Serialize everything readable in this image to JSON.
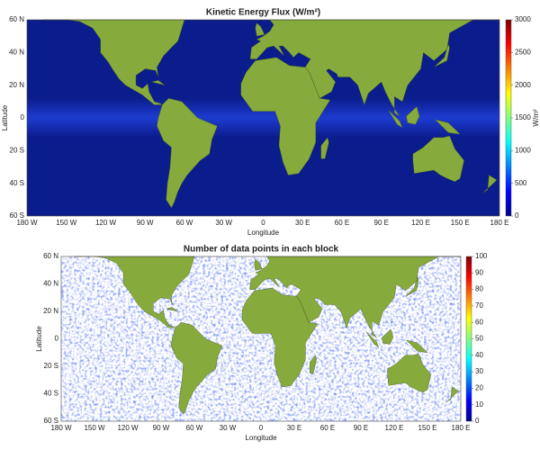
{
  "panels": [
    {
      "title": "Kinetic Energy Flux (W/m²)",
      "x_label": "Longitude",
      "y_label": "Latitude",
      "x_ticks": [
        "180 W",
        "150 W",
        "120 W",
        "90 W",
        "60 W",
        "30 W",
        "0",
        "30 E",
        "60 E",
        "90 E",
        "120 E",
        "150 E",
        "180 E"
      ],
      "y_ticks": [
        "60 N",
        "40 N",
        "20 N",
        "0",
        "20 S",
        "40 S",
        "60 S"
      ],
      "colorbar_label": "W/m²",
      "colorbar_ticks": [
        0,
        500,
        1000,
        1500,
        2000,
        2500,
        3000
      ]
    },
    {
      "title": "Number of data points in each block",
      "x_label": "Longitude",
      "y_label": "Latitude",
      "x_ticks": [
        "180 W",
        "150 W",
        "120 W",
        "90 W",
        "60 W",
        "30 W",
        "0",
        "30 E",
        "60 E",
        "90 E",
        "120 E",
        "150 E",
        "180 E"
      ],
      "y_ticks": [
        "60 N",
        "40 N",
        "20 N",
        "0",
        "20 S",
        "40 S",
        "60 S"
      ],
      "colorbar_ticks": [
        0,
        10,
        20,
        30,
        40,
        50,
        60,
        70,
        80,
        90,
        100
      ]
    }
  ]
}
